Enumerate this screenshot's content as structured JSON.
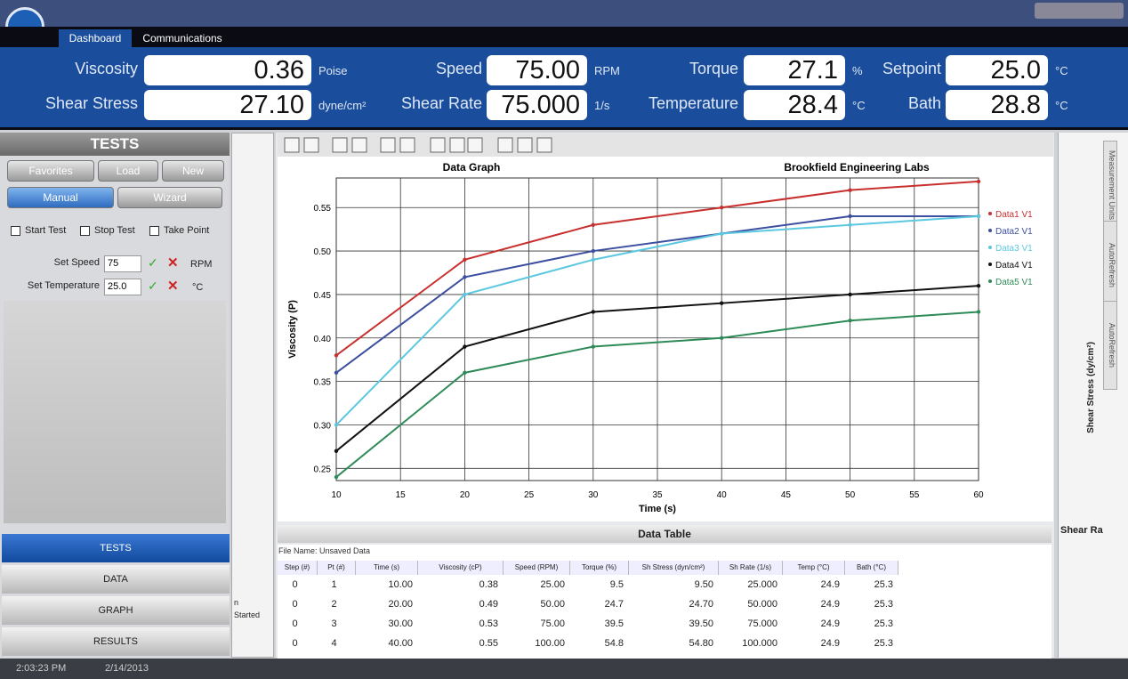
{
  "window": {
    "tabs": [
      "Dashboard",
      "Communications"
    ]
  },
  "readouts": [
    {
      "label": "Viscosity",
      "value": "0.36",
      "unit": "Poise"
    },
    {
      "label": "Shear Stress",
      "value": "27.10",
      "unit": "dyne/cm²"
    },
    {
      "label": "Speed",
      "value": "75.00",
      "unit": "RPM"
    },
    {
      "label": "Shear Rate",
      "value": "75.000",
      "unit": "1/s"
    },
    {
      "label": "Torque",
      "value": "27.1",
      "unit": "%"
    },
    {
      "label": "Temperature",
      "value": "28.4",
      "unit": "°C"
    },
    {
      "label": "Setpoint",
      "value": "25.0",
      "unit": "°C"
    },
    {
      "label": "Bath",
      "value": "28.8",
      "unit": "°C"
    }
  ],
  "tests_panel": {
    "title": "TESTS",
    "buttons": [
      "Favorites",
      "Load",
      "New",
      "Manual",
      "Wizard"
    ],
    "actions": [
      "Start Test",
      "Stop Test",
      "Take Point"
    ],
    "settings": [
      {
        "label": "Set Speed",
        "value": "75",
        "unit": "RPM"
      },
      {
        "label": "Set Temperature",
        "value": "25.0",
        "unit": "°C"
      }
    ]
  },
  "nav": [
    "TESTS",
    "DATA",
    "GRAPH",
    "RESULTS"
  ],
  "log_text": [
    "n",
    "Started"
  ],
  "chart_data": {
    "type": "line",
    "title": "Data Graph",
    "subtitle": "Brookfield Engineering Labs",
    "x_label": "Time (s)",
    "y_label": "Viscosity (P)",
    "x": [
      10,
      20,
      30,
      40,
      50,
      60
    ],
    "series": [
      {
        "name": "Data1 V1",
        "color": "#c8302f",
        "values": [
          0.38,
          0.49,
          0.53,
          0.55,
          0.57,
          0.58
        ]
      },
      {
        "name": "Data2 V1",
        "color": "#3c4fa0",
        "values": [
          0.36,
          0.47,
          0.5,
          0.52,
          0.54,
          0.54
        ]
      },
      {
        "name": "Data3 V1",
        "color": "#5cc8e0",
        "values": [
          0.3,
          0.45,
          0.49,
          0.52,
          0.53,
          0.54
        ]
      },
      {
        "name": "Data4 V1",
        "color": "#111111",
        "values": [
          0.27,
          0.39,
          0.43,
          0.44,
          0.45,
          0.46
        ]
      },
      {
        "name": "Data5 V1",
        "color": "#2e8b57",
        "values": [
          0.24,
          0.36,
          0.39,
          0.4,
          0.42,
          0.43
        ]
      }
    ],
    "xlim": [
      10,
      60
    ],
    "xticks": [
      10,
      15,
      20,
      25,
      30,
      35,
      40,
      45,
      50,
      55,
      60
    ],
    "ylim": [
      0.236,
      0.584
    ],
    "yticks": [
      0.25,
      {
        "value": 0.3,
        "label": "0.30"
      },
      0.35,
      {
        "value": 0.4,
        "label": "0.40"
      },
      0.45,
      {
        "value": 0.5,
        "label": "0.50"
      },
      0.55
    ],
    "grid": true,
    "legend": "right"
  },
  "table": {
    "title": "Data Table",
    "file_name": "File Name: Unsaved Data",
    "columns": [
      "Step (#)",
      "Pt (#)",
      "Time (s)",
      "Viscosity (cP)",
      "Speed (RPM)",
      "Torque (%)",
      "Sh Stress (dyn/cm²)",
      "Sh Rate (1/s)",
      "Temp (°C)",
      "Bath (°C)"
    ],
    "rows": [
      [
        "0",
        "1",
        "10.00",
        "0.38",
        "25.00",
        "9.5",
        "9.50",
        "25.000",
        "24.9",
        "25.3"
      ],
      [
        "0",
        "2",
        "20.00",
        "0.49",
        "50.00",
        "24.7",
        "24.70",
        "50.000",
        "24.9",
        "25.3"
      ],
      [
        "0",
        "3",
        "30.00",
        "0.53",
        "75.00",
        "39.5",
        "39.50",
        "75.000",
        "24.9",
        "25.3"
      ],
      [
        "0",
        "4",
        "40.00",
        "0.55",
        "100.00",
        "54.8",
        "54.80",
        "100.000",
        "24.9",
        "25.3"
      ]
    ]
  },
  "right_panel": {
    "y_label": "Shear Stress (dy/cm²)",
    "x_label": "Shear Ra",
    "vertical_tabs": [
      "Measurement Units",
      "AutoRefresh",
      "AutoRefresh"
    ]
  },
  "status": [
    "2:03:23 PM",
    "2/14/2013"
  ]
}
